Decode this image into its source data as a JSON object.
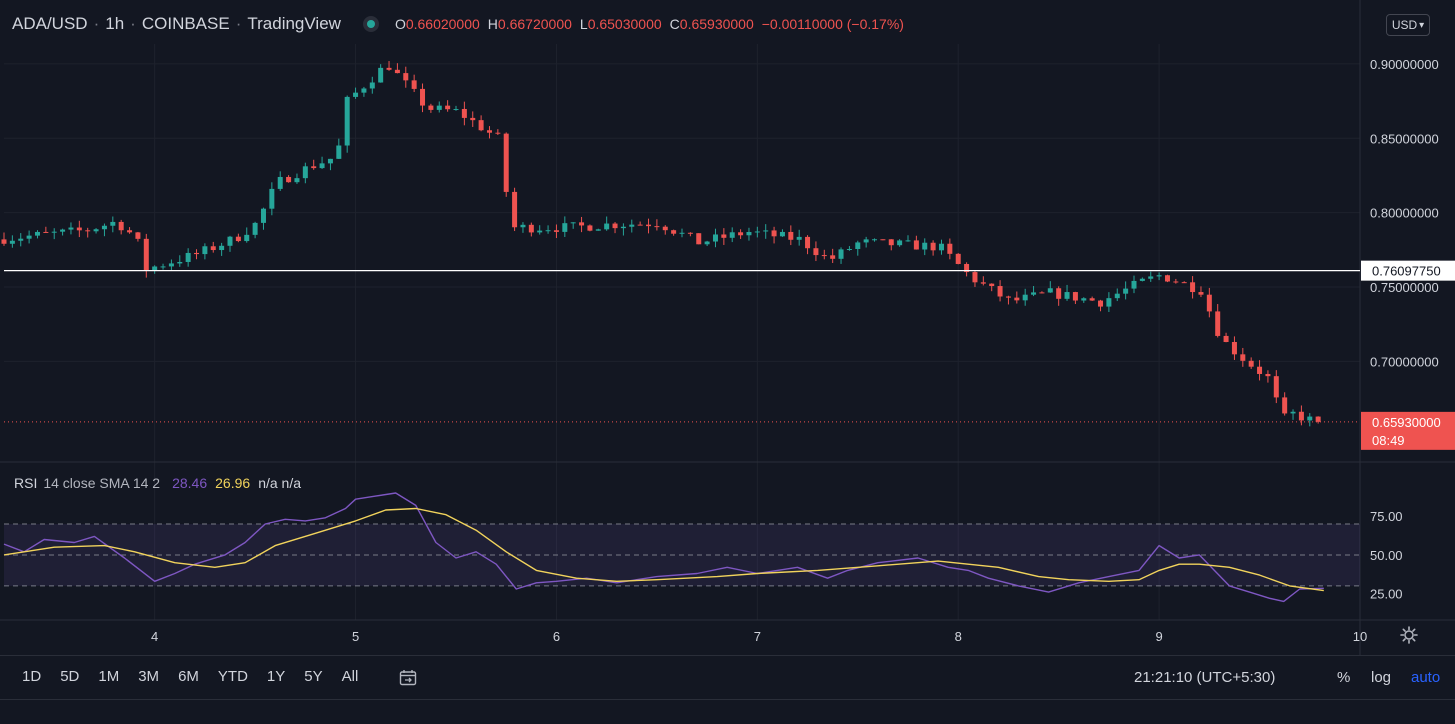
{
  "header": {
    "symbol": "ADA/USD",
    "interval": "1h",
    "exchange": "COINBASE",
    "source": "TradingView",
    "ohlc": {
      "o_label": "O",
      "o": "0.66020000",
      "h_label": "H",
      "h": "0.66720000",
      "l_label": "L",
      "l": "0.65030000",
      "c_label": "C",
      "c": "0.65930000",
      "change": "−0.00110000 (−0.17%)"
    },
    "currency": "USD",
    "currency_arrow": "▾"
  },
  "rsi_header": {
    "name": "RSI",
    "params": "14 close SMA 14 2",
    "rsi_value": "28.46",
    "sma_value": "26.96",
    "na": "n/a n/a"
  },
  "colors": {
    "background": "#131722",
    "up": "#26a69a",
    "down": "#ef5350",
    "rsi_line": "#7e57c2",
    "rsi_sma": "#f1d35c",
    "rsi_band": "rgba(126,87,194,0.12)",
    "grid": "#1e222d",
    "axis_text": "#d1d4dc",
    "accent_blue": "#2962ff"
  },
  "chart_data": [
    {
      "type": "candlestick",
      "title": "ADA/USD, 1h, COINBASE",
      "ylim": [
        0.635,
        0.908
      ],
      "y_ticks": [
        "0.90000000",
        "0.85000000",
        "0.80000000",
        "0.75000000",
        "0.70000000"
      ],
      "x_ticks": [
        "4",
        "5",
        "6",
        "7",
        "8",
        "9",
        "10"
      ],
      "x_tick_days": [
        4,
        5,
        6,
        7,
        8,
        9,
        10
      ],
      "x_range_days": [
        3.25,
        10.0
      ],
      "horizontal_line": {
        "value": 0.7609775,
        "label": "0.76097750"
      },
      "last_price": {
        "value": 0.6593,
        "label": "0.65930000",
        "countdown": "08:49"
      },
      "anchors": [
        [
          3.25,
          0.782
        ],
        [
          3.7,
          0.788
        ],
        [
          3.85,
          0.794
        ],
        [
          3.95,
          0.783
        ],
        [
          4.0,
          0.762
        ],
        [
          4.25,
          0.772
        ],
        [
          4.45,
          0.783
        ],
        [
          4.55,
          0.793
        ],
        [
          4.65,
          0.82
        ],
        [
          4.8,
          0.83
        ],
        [
          4.95,
          0.838
        ],
        [
          5.0,
          0.875
        ],
        [
          5.2,
          0.9
        ],
        [
          5.4,
          0.87
        ],
        [
          5.55,
          0.868
        ],
        [
          5.75,
          0.85
        ],
        [
          5.82,
          0.79
        ],
        [
          6.1,
          0.79
        ],
        [
          6.3,
          0.792
        ],
        [
          6.55,
          0.793
        ],
        [
          6.75,
          0.78
        ],
        [
          7.0,
          0.787
        ],
        [
          7.25,
          0.782
        ],
        [
          7.4,
          0.768
        ],
        [
          7.55,
          0.78
        ],
        [
          7.95,
          0.777
        ],
        [
          8.1,
          0.757
        ],
        [
          8.3,
          0.74
        ],
        [
          8.5,
          0.746
        ],
        [
          8.75,
          0.74
        ],
        [
          8.95,
          0.753
        ],
        [
          9.05,
          0.758
        ],
        [
          9.25,
          0.748
        ],
        [
          9.35,
          0.715
        ],
        [
          9.45,
          0.703
        ],
        [
          9.6,
          0.687
        ],
        [
          9.65,
          0.66
        ],
        [
          9.7,
          0.665
        ],
        [
          9.82,
          0.6593
        ]
      ]
    },
    {
      "type": "line",
      "title": "RSI 14 close SMA 14 2",
      "ylim": [
        8,
        110
      ],
      "y_ticks": [
        "75.00",
        "50.00",
        "25.00"
      ],
      "levels": [
        70,
        50,
        30
      ],
      "series": [
        {
          "name": "RSI",
          "x": [
            3.25,
            3.35,
            3.45,
            3.6,
            3.7,
            3.85,
            4.0,
            4.1,
            4.2,
            4.35,
            4.45,
            4.55,
            4.65,
            4.75,
            4.85,
            4.95,
            5.0,
            5.1,
            5.2,
            5.3,
            5.4,
            5.5,
            5.6,
            5.7,
            5.8,
            5.9,
            6.0,
            6.15,
            6.3,
            6.5,
            6.7,
            6.85,
            7.0,
            7.2,
            7.35,
            7.45,
            7.6,
            7.8,
            7.95,
            8.05,
            8.15,
            8.3,
            8.45,
            8.6,
            8.75,
            8.9,
            9.0,
            9.1,
            9.2,
            9.35,
            9.45,
            9.55,
            9.62,
            9.7,
            9.82
          ],
          "values": [
            57,
            52,
            60,
            58,
            62,
            48,
            33,
            38,
            44,
            50,
            58,
            70,
            73,
            72,
            74,
            80,
            86,
            88,
            90,
            82,
            58,
            48,
            52,
            44,
            28,
            32,
            33,
            35,
            32,
            36,
            38,
            42,
            38,
            42,
            35,
            40,
            45,
            48,
            42,
            40,
            35,
            30,
            26,
            32,
            36,
            40,
            56,
            48,
            50,
            30,
            26,
            22,
            20,
            28,
            28.46
          ]
        },
        {
          "name": "SMA",
          "x": [
            3.25,
            3.5,
            3.75,
            3.9,
            4.1,
            4.3,
            4.45,
            4.6,
            4.8,
            5.0,
            5.15,
            5.3,
            5.45,
            5.6,
            5.75,
            5.9,
            6.1,
            6.3,
            6.5,
            6.8,
            7.0,
            7.3,
            7.6,
            7.9,
            8.05,
            8.2,
            8.4,
            8.55,
            8.75,
            8.9,
            9.0,
            9.1,
            9.2,
            9.35,
            9.5,
            9.65,
            9.82
          ],
          "values": [
            50,
            55,
            56,
            52,
            45,
            42,
            45,
            56,
            64,
            72,
            79,
            80,
            76,
            66,
            52,
            40,
            35,
            33,
            34,
            36,
            38,
            40,
            43,
            46,
            44,
            42,
            36,
            34,
            33,
            34,
            40,
            44,
            44,
            42,
            37,
            30,
            26.96
          ]
        }
      ]
    }
  ],
  "toolbar": {
    "ranges": [
      "1D",
      "5D",
      "1M",
      "3M",
      "6M",
      "YTD",
      "1Y",
      "5Y",
      "All"
    ],
    "clock": "21:21:10 (UTC+5:30)",
    "percent": "%",
    "log": "log",
    "auto": "auto"
  }
}
